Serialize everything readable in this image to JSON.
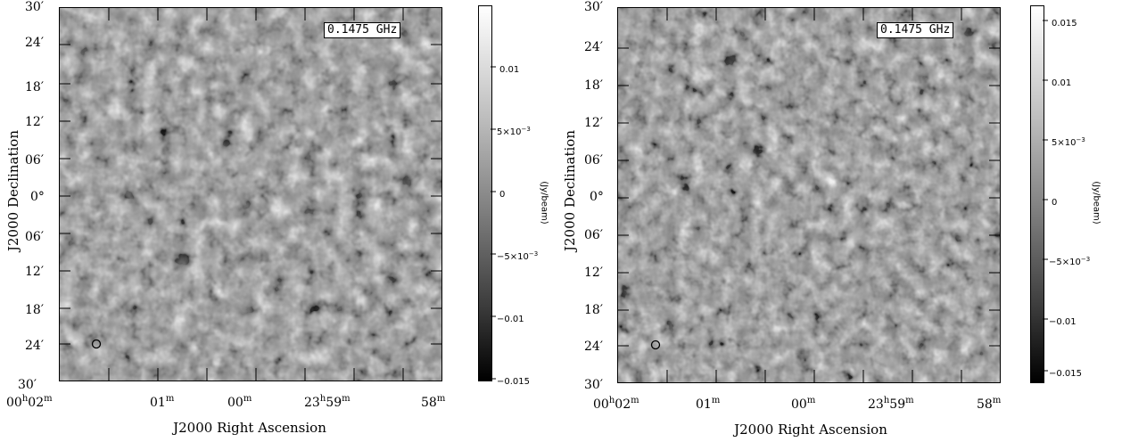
{
  "panels": [
    {
      "frequency_label": "0.1475 GHz",
      "y_axis_label": "J2000 Declination",
      "x_axis_label": "J2000 Right Ascension",
      "dec_ticks": [
        "30′",
        "24′",
        "18′",
        "12′",
        "06′",
        "0°",
        "06′",
        "12′",
        "18′",
        "24′",
        "30′"
      ],
      "ra_ticks": [
        {
          "main": "00",
          "h": "h",
          "mm": "02",
          "m": "m"
        },
        {
          "main": "01",
          "h": "",
          "mm": "",
          "m": "m"
        },
        {
          "main": "00",
          "h": "",
          "mm": "",
          "m": "m"
        },
        {
          "main": "23",
          "h": "h",
          "mm": "59",
          "m": "m"
        },
        {
          "main": "58",
          "h": "",
          "mm": "",
          "m": "m"
        }
      ],
      "colorbar": {
        "unit": "(Jy/beam)",
        "ticks": [
          {
            "base": "0.01",
            "exp": ""
          },
          {
            "base": "5×10",
            "exp": "−3"
          },
          {
            "base": "0",
            "exp": ""
          },
          {
            "base": "−5×10",
            "exp": "−3"
          },
          {
            "base": "−0.01",
            "exp": ""
          },
          {
            "base": "−0.015",
            "exp": ""
          }
        ]
      }
    },
    {
      "frequency_label": "0.1475 GHz",
      "y_axis_label": "J2000 Declination",
      "x_axis_label": "J2000 Right Ascension",
      "dec_ticks": [
        "30′",
        "24′",
        "18′",
        "12′",
        "06′",
        "0°",
        "06′",
        "12′",
        "18′",
        "24′",
        "30′"
      ],
      "ra_ticks": [
        {
          "main": "00",
          "h": "h",
          "mm": "02",
          "m": "m"
        },
        {
          "main": "01",
          "h": "",
          "mm": "",
          "m": "m"
        },
        {
          "main": "00",
          "h": "",
          "mm": "",
          "m": "m"
        },
        {
          "main": "23",
          "h": "h",
          "mm": "59",
          "m": "m"
        },
        {
          "main": "58",
          "h": "",
          "mm": "",
          "m": "m"
        }
      ],
      "colorbar": {
        "unit": "(Jy/beam)",
        "ticks": [
          {
            "base": "0.015",
            "exp": ""
          },
          {
            "base": "0.01",
            "exp": ""
          },
          {
            "base": "5×10",
            "exp": "−3"
          },
          {
            "base": "0",
            "exp": ""
          },
          {
            "base": "−5×10",
            "exp": "−3"
          },
          {
            "base": "−0.01",
            "exp": ""
          },
          {
            "base": "−0.015",
            "exp": ""
          }
        ]
      }
    }
  ],
  "colors": {
    "map_mid": "#8a8a8a",
    "frame": "#000000",
    "background": "#ffffff"
  },
  "icons": {
    "beam": "circle-beam-marker"
  }
}
